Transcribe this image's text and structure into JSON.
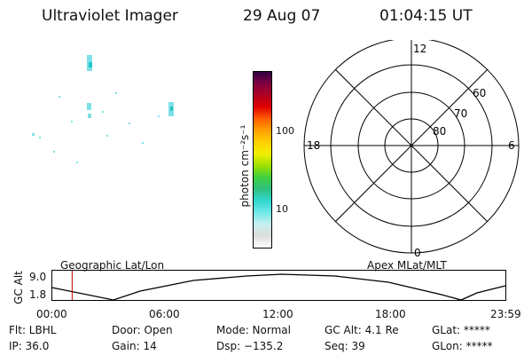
{
  "header": {
    "title": "Ultraviolet Imager",
    "date": "29 Aug 07",
    "time": "01:04:15 UT"
  },
  "colorbar": {
    "ylabel": "photon cm⁻²s⁻¹",
    "ticks": [
      "100",
      "10"
    ],
    "colors": [
      "#ffffff",
      "#dcdcdc",
      "#c8f0f0",
      "#70e8e8",
      "#30d8d0",
      "#30c080",
      "#40d040",
      "#a0e000",
      "#f0f000",
      "#ffd000",
      "#ffa000",
      "#ff6000",
      "#e00000",
      "#b00020",
      "#800040",
      "#300040"
    ]
  },
  "polar": {
    "mlt_labels": {
      "top": "12",
      "left": "18",
      "right": "6",
      "bottom": "0"
    },
    "lat_labels": [
      "60",
      "70",
      "80"
    ]
  },
  "timeline": {
    "ylabel": "GC Alt",
    "yticks": [
      "9.0",
      "1.8"
    ],
    "left_label": "Geographic Lat/Lon",
    "right_label": "Apex  MLat/MLT",
    "xticks": [
      "00:00",
      "06:00",
      "12:00",
      "18:00",
      "23:59"
    ],
    "current_time": "01:04:15",
    "marker_color": "#c00000"
  },
  "footer": {
    "row1": [
      {
        "label": "Flt: LBHL"
      },
      {
        "label": "Door: Open"
      },
      {
        "label": "Mode: Normal"
      },
      {
        "label": "GC Alt: 4.1 Re"
      },
      {
        "label": "GLat: *****"
      }
    ],
    "row2": [
      {
        "label": "IP: 36.0"
      },
      {
        "label": "Gain: 14"
      },
      {
        "label": "Dsp: −135.2"
      },
      {
        "label": "Seq: 39"
      },
      {
        "label": "GLon: *****"
      }
    ]
  }
}
